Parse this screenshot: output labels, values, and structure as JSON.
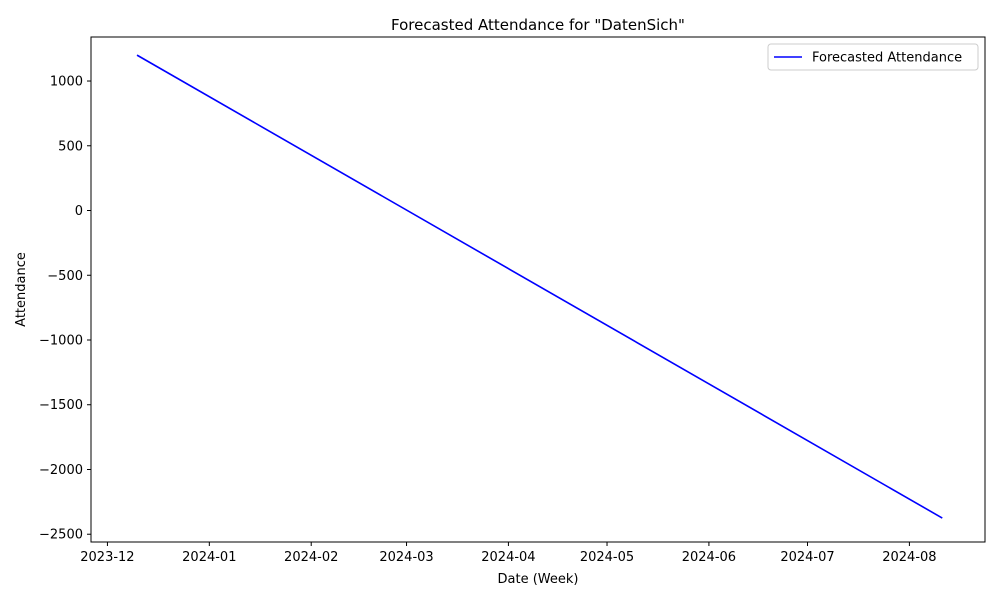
{
  "chart_data": {
    "type": "line",
    "title": "Forecasted Attendance for \"DatenSich\"",
    "xlabel": "Date (Week)",
    "ylabel": "Attendance",
    "x_tick_labels": [
      "2023-12",
      "2024-01",
      "2024-02",
      "2024-03",
      "2024-04",
      "2024-05",
      "2024-06",
      "2024-07",
      "2024-08"
    ],
    "y_ticks": [
      1000,
      500,
      0,
      -500,
      -1000,
      -1500,
      -2000,
      -2500
    ],
    "y_tick_labels": [
      "1000",
      "500",
      "0",
      "−500",
      "−1000",
      "−1500",
      "−2000",
      "−2500"
    ],
    "xlim": [
      "2023-11-26",
      "2024-08-24"
    ],
    "ylim": [
      -2560,
      1340
    ],
    "grid": false,
    "legend_position": "top-right",
    "series": [
      {
        "name": "Forecasted Attendance",
        "color": "#0000ff",
        "x": [
          "2023-12-10",
          "2024-08-11"
        ],
        "y": [
          1200,
          -2375
        ]
      }
    ]
  }
}
